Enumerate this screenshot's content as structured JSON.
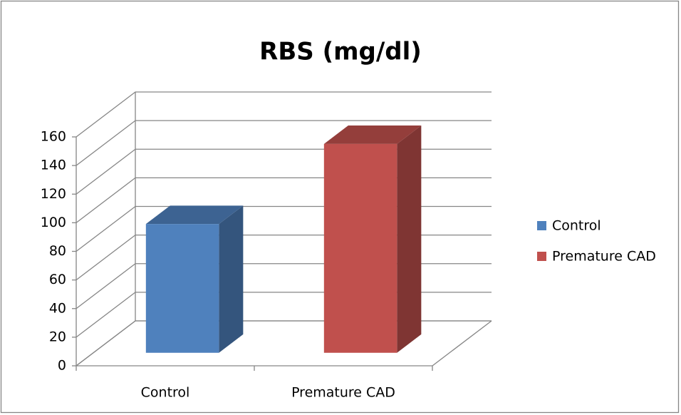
{
  "chart_data": {
    "type": "bar",
    "title": "RBS (mg/dl)",
    "categories": [
      "Control",
      "Premature CAD"
    ],
    "values": [
      90,
      146
    ],
    "colors": [
      "#4f81bd",
      "#c0504d"
    ],
    "ylim": [
      0,
      160
    ],
    "yticks": [
      0,
      20,
      40,
      60,
      80,
      100,
      120,
      140,
      160
    ],
    "grid": true,
    "legend": "right"
  }
}
